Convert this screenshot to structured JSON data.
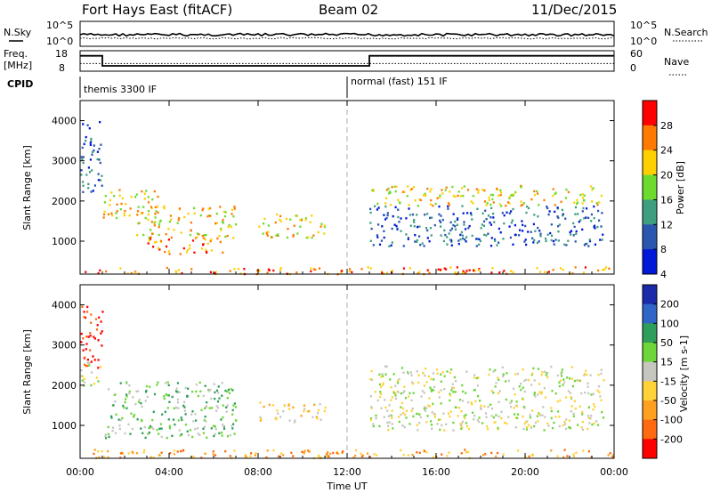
{
  "header": {
    "station": "Fort Hays East (fitACF)",
    "beam": "Beam 02",
    "date": "11/Dec/2015"
  },
  "noise_panel": {
    "left_label": "N.Sky",
    "right_label": "N.Search",
    "left_ticks": [
      "10^5",
      "10^0"
    ],
    "right_ticks": [
      "10^5",
      "10^0"
    ]
  },
  "freq_panel": {
    "left_label_1": "Freq.",
    "left_label_2": "[MHz]",
    "right_label": "Nave",
    "left_ticks": [
      "18",
      "8"
    ],
    "right_ticks": [
      "60",
      "0"
    ],
    "freq_segments": [
      {
        "from_hour": 0.0,
        "to_hour": 1.0,
        "value": 16.5
      },
      {
        "from_hour": 1.0,
        "to_hour": 13.0,
        "value": 10.2
      },
      {
        "from_hour": 13.0,
        "to_hour": 24.0,
        "value": 16.5
      }
    ],
    "nave_value": 22
  },
  "cpid": {
    "label": "CPID",
    "modes": [
      {
        "name": "themis 3300 IF",
        "start_hour": 0
      },
      {
        "name": "normal (fast) 151 IF",
        "start_hour": 12
      }
    ]
  },
  "chart_data": [
    {
      "type": "heatmap",
      "panel": "power",
      "ylabel": "Slant Range [km]",
      "ylim": [
        180,
        4500
      ],
      "y_ticks": [
        "1000",
        "2000",
        "3000",
        "4000"
      ],
      "xlim_hours": [
        0,
        24
      ],
      "colorbar_label": "Power [dB]",
      "colorbar_ticks": [
        "28",
        "24",
        "20",
        "16",
        "12",
        "8",
        "4"
      ],
      "colorbar_colors": [
        "#ff0000",
        "#ff7a00",
        "#ffd000",
        "#6ddb2e",
        "#3e9f80",
        "#2a56b0",
        "#0018d8"
      ],
      "regions": [
        {
          "t0": 0.0,
          "t1": 1.0,
          "r0": 2250,
          "r1": 4000,
          "level": 5
        },
        {
          "t0": 1.0,
          "t1": 3.5,
          "r0": 1600,
          "r1": 2300,
          "level": 2
        },
        {
          "t0": 2.5,
          "t1": 7.0,
          "r0": 1100,
          "r1": 1900,
          "level": 2
        },
        {
          "t0": 3.0,
          "t1": 6.5,
          "r0": 700,
          "r1": 1100,
          "level": 1
        },
        {
          "t0": 8.0,
          "t1": 11.0,
          "r0": 1100,
          "r1": 1700,
          "level": 2
        },
        {
          "t0": 13.0,
          "t1": 23.5,
          "r0": 900,
          "r1": 1900,
          "level": 5
        },
        {
          "t0": 13.0,
          "t1": 23.5,
          "r0": 1900,
          "r1": 2400,
          "level": 2
        },
        {
          "t0": 0.0,
          "t1": 24.0,
          "r0": 200,
          "r1": 380,
          "level": 1
        }
      ]
    },
    {
      "type": "heatmap",
      "panel": "velocity",
      "ylabel": "Slant Range [km]",
      "ylim": [
        180,
        4500
      ],
      "y_ticks": [
        "1000",
        "2000",
        "3000",
        "4000"
      ],
      "xlim_hours": [
        0,
        24
      ],
      "colorbar_label": "Velocity [m s-1]",
      "colorbar_ticks": [
        "200",
        "100",
        "50",
        "15",
        "-15",
        "-50",
        "-100",
        "-200"
      ],
      "colorbar_colors": [
        "#1a2aa8",
        "#2f66c8",
        "#2e9e5a",
        "#6ed63a",
        "#c6c6c0",
        "#ffd238",
        "#ffa020",
        "#ff6a10",
        "#ff0000"
      ],
      "regions": [
        {
          "t0": 0.0,
          "t1": 1.0,
          "r0": 2400,
          "r1": 4000,
          "level": 8
        },
        {
          "t0": 0.0,
          "t1": 1.0,
          "r0": 2000,
          "r1": 2600,
          "level": 4
        },
        {
          "t0": 1.0,
          "t1": 7.0,
          "r0": 700,
          "r1": 2100,
          "level": 3
        },
        {
          "t0": 8.0,
          "t1": 11.0,
          "r0": 1100,
          "r1": 1600,
          "level": 5
        },
        {
          "t0": 13.0,
          "t1": 23.5,
          "r0": 900,
          "r1": 2500,
          "level": 4
        },
        {
          "t0": 0.0,
          "t1": 24.0,
          "r0": 200,
          "r1": 420,
          "level": 6
        }
      ]
    }
  ],
  "x_axis": {
    "ticks": [
      "00:00",
      "04:00",
      "08:00",
      "12:00",
      "16:00",
      "20:00",
      "00:00"
    ],
    "label": "Time UT"
  }
}
